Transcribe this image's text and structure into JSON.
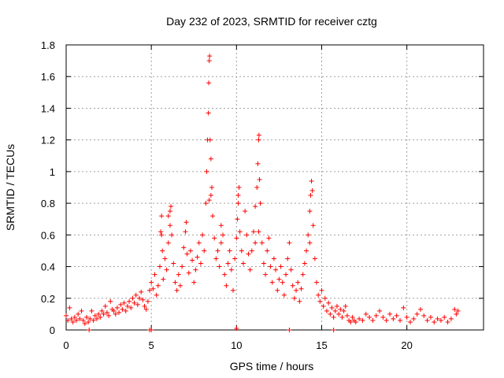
{
  "chart_data": {
    "type": "scatter",
    "title": "Day 232 of 2023, SRMTID for receiver cztg",
    "xlabel": "GPS time / hours",
    "ylabel": "SRMTID / TECUs",
    "xlim": [
      0,
      24.5
    ],
    "ylim": [
      0,
      1.8
    ],
    "xticks": [
      0,
      5,
      10,
      15,
      20
    ],
    "yticks": [
      0,
      0.2,
      0.4,
      0.6,
      0.8,
      1.0,
      1.2,
      1.4,
      1.6,
      1.8
    ],
    "xtick_labels": [
      "0",
      "5",
      "10",
      "15",
      "20"
    ],
    "ytick_labels": [
      "0",
      "0.2",
      "0.4",
      "0.6",
      "0.8",
      "1",
      "1.2",
      "1.4",
      "1.6",
      "1.8"
    ],
    "grid": true,
    "marker": "+",
    "color": "#ff0000",
    "series": [
      {
        "name": "SRMTID",
        "points": [
          [
            0.0,
            0.09
          ],
          [
            0.1,
            0.06
          ],
          [
            0.2,
            0.14
          ],
          [
            0.3,
            0.07
          ],
          [
            0.4,
            0.05
          ],
          [
            0.5,
            0.08
          ],
          [
            0.6,
            0.06
          ],
          [
            0.7,
            0.1
          ],
          [
            0.8,
            0.07
          ],
          [
            0.9,
            0.12
          ],
          [
            1.0,
            0.06
          ],
          [
            1.1,
            0.04
          ],
          [
            1.2,
            0.08
          ],
          [
            1.3,
            0.05
          ],
          [
            1.4,
            0.07
          ],
          [
            1.5,
            0.12
          ],
          [
            1.6,
            0.06
          ],
          [
            1.7,
            0.09
          ],
          [
            1.8,
            0.07
          ],
          [
            1.9,
            0.1
          ],
          [
            2.0,
            0.08
          ],
          [
            2.1,
            0.12
          ],
          [
            2.2,
            0.1
          ],
          [
            2.3,
            0.15
          ],
          [
            2.4,
            0.11
          ],
          [
            2.5,
            0.09
          ],
          [
            2.6,
            0.18
          ],
          [
            2.7,
            0.13
          ],
          [
            2.8,
            0.12
          ],
          [
            2.9,
            0.1
          ],
          [
            3.0,
            0.14
          ],
          [
            3.1,
            0.11
          ],
          [
            3.2,
            0.16
          ],
          [
            3.3,
            0.13
          ],
          [
            3.4,
            0.17
          ],
          [
            3.5,
            0.12
          ],
          [
            3.6,
            0.15
          ],
          [
            3.7,
            0.18
          ],
          [
            3.8,
            0.14
          ],
          [
            3.9,
            0.2
          ],
          [
            4.0,
            0.17
          ],
          [
            4.1,
            0.22
          ],
          [
            4.2,
            0.16
          ],
          [
            4.3,
            0.2
          ],
          [
            4.4,
            0.24
          ],
          [
            4.5,
            0.19
          ],
          [
            4.6,
            0.15
          ],
          [
            4.7,
            0.13
          ],
          [
            4.8,
            0.18
          ],
          [
            4.9,
            0.25
          ],
          [
            5.0,
            0.3
          ],
          [
            5.1,
            0.26
          ],
          [
            5.2,
            0.35
          ],
          [
            5.3,
            0.22
          ],
          [
            5.4,
            0.28
          ],
          [
            5.5,
            0.4
          ],
          [
            5.55,
            0.62
          ],
          [
            5.6,
            0.72
          ],
          [
            5.65,
            0.5
          ],
          [
            5.7,
            0.32
          ],
          [
            5.8,
            0.45
          ],
          [
            5.9,
            0.38
          ],
          [
            6.0,
            0.55
          ],
          [
            6.1,
            0.66
          ],
          [
            6.15,
            0.78
          ],
          [
            6.2,
            0.6
          ],
          [
            6.3,
            0.42
          ],
          [
            6.4,
            0.3
          ],
          [
            6.5,
            0.25
          ],
          [
            6.6,
            0.35
          ],
          [
            6.7,
            0.28
          ],
          [
            6.8,
            0.4
          ],
          [
            6.9,
            0.52
          ],
          [
            7.0,
            0.62
          ],
          [
            7.05,
            0.68
          ],
          [
            7.1,
            0.48
          ],
          [
            7.2,
            0.36
          ],
          [
            7.3,
            0.5
          ],
          [
            7.4,
            0.44
          ],
          [
            7.5,
            0.3
          ],
          [
            7.6,
            0.38
          ],
          [
            7.7,
            0.46
          ],
          [
            7.8,
            0.55
          ],
          [
            7.9,
            0.42
          ],
          [
            8.0,
            0.6
          ],
          [
            8.1,
            0.5
          ],
          [
            8.2,
            0.8
          ],
          [
            8.25,
            1.0
          ],
          [
            8.3,
            1.2
          ],
          [
            8.35,
            1.37
          ],
          [
            8.37,
            1.56
          ],
          [
            8.4,
            1.7
          ],
          [
            8.42,
            1.73
          ],
          [
            8.45,
            1.2
          ],
          [
            8.5,
            1.08
          ],
          [
            8.55,
            0.9
          ],
          [
            8.6,
            0.72
          ],
          [
            8.7,
            0.58
          ],
          [
            8.8,
            0.45
          ],
          [
            8.9,
            0.5
          ],
          [
            9.0,
            0.4
          ],
          [
            9.1,
            0.55
          ],
          [
            9.2,
            0.6
          ],
          [
            9.3,
            0.35
          ],
          [
            9.4,
            0.28
          ],
          [
            9.5,
            0.42
          ],
          [
            9.6,
            0.5
          ],
          [
            9.7,
            0.38
          ],
          [
            9.8,
            0.25
          ],
          [
            9.9,
            0.45
          ],
          [
            10.0,
            0.58
          ],
          [
            10.05,
            0.7
          ],
          [
            10.1,
            0.85
          ],
          [
            10.15,
            0.9
          ],
          [
            10.2,
            0.62
          ],
          [
            10.3,
            0.5
          ],
          [
            10.4,
            0.42
          ],
          [
            10.5,
            0.75
          ],
          [
            10.6,
            0.6
          ],
          [
            10.7,
            0.48
          ],
          [
            10.8,
            0.38
          ],
          [
            10.9,
            0.5
          ],
          [
            11.0,
            0.62
          ],
          [
            11.1,
            0.78
          ],
          [
            11.2,
            0.9
          ],
          [
            11.25,
            1.05
          ],
          [
            11.3,
            1.2
          ],
          [
            11.32,
            1.23
          ],
          [
            11.35,
            0.95
          ],
          [
            11.4,
            0.8
          ],
          [
            11.5,
            0.55
          ],
          [
            11.6,
            0.42
          ],
          [
            11.7,
            0.35
          ],
          [
            11.8,
            0.5
          ],
          [
            11.9,
            0.58
          ],
          [
            12.0,
            0.4
          ],
          [
            12.1,
            0.3
          ],
          [
            12.2,
            0.45
          ],
          [
            12.3,
            0.38
          ],
          [
            12.4,
            0.25
          ],
          [
            12.5,
            0.32
          ],
          [
            12.6,
            0.4
          ],
          [
            12.7,
            0.3
          ],
          [
            12.8,
            0.22
          ],
          [
            12.9,
            0.35
          ],
          [
            13.0,
            0.45
          ],
          [
            13.1,
            0.55
          ],
          [
            13.2,
            0.38
          ],
          [
            13.3,
            0.28
          ],
          [
            13.4,
            0.2
          ],
          [
            13.5,
            0.25
          ],
          [
            13.6,
            0.3
          ],
          [
            13.7,
            0.18
          ],
          [
            13.8,
            0.26
          ],
          [
            13.9,
            0.35
          ],
          [
            14.0,
            0.42
          ],
          [
            14.1,
            0.5
          ],
          [
            14.2,
            0.6
          ],
          [
            14.3,
            0.75
          ],
          [
            14.35,
            0.85
          ],
          [
            14.4,
            0.94
          ],
          [
            14.45,
            0.88
          ],
          [
            14.5,
            0.66
          ],
          [
            14.6,
            0.45
          ],
          [
            14.7,
            0.3
          ],
          [
            14.8,
            0.22
          ],
          [
            14.9,
            0.18
          ],
          [
            15.0,
            0.25
          ],
          [
            15.1,
            0.15
          ],
          [
            15.2,
            0.2
          ],
          [
            15.3,
            0.12
          ],
          [
            15.4,
            0.17
          ],
          [
            15.5,
            0.1
          ],
          [
            15.6,
            0.14
          ],
          [
            15.7,
            0.08
          ],
          [
            15.8,
            0.12
          ],
          [
            15.9,
            0.15
          ],
          [
            16.0,
            0.1
          ],
          [
            16.1,
            0.13
          ],
          [
            16.2,
            0.08
          ],
          [
            16.3,
            0.12
          ],
          [
            16.4,
            0.15
          ],
          [
            16.5,
            0.09
          ],
          [
            16.6,
            0.06
          ],
          [
            16.7,
            0.05
          ],
          [
            16.8,
            0.08
          ],
          [
            16.9,
            0.06
          ],
          [
            17.0,
            0.05
          ],
          [
            17.2,
            0.07
          ],
          [
            17.4,
            0.06
          ],
          [
            17.6,
            0.1
          ],
          [
            17.8,
            0.08
          ],
          [
            18.0,
            0.06
          ],
          [
            18.2,
            0.09
          ],
          [
            18.4,
            0.12
          ],
          [
            18.6,
            0.08
          ],
          [
            18.8,
            0.06
          ],
          [
            19.0,
            0.1
          ],
          [
            19.2,
            0.07
          ],
          [
            19.4,
            0.09
          ],
          [
            19.6,
            0.06
          ],
          [
            19.8,
            0.14
          ],
          [
            20.0,
            0.08
          ],
          [
            20.2,
            0.05
          ],
          [
            20.4,
            0.07
          ],
          [
            20.6,
            0.1
          ],
          [
            20.8,
            0.13
          ],
          [
            21.0,
            0.09
          ],
          [
            21.2,
            0.06
          ],
          [
            21.4,
            0.08
          ],
          [
            21.6,
            0.05
          ],
          [
            21.8,
            0.07
          ],
          [
            22.0,
            0.06
          ],
          [
            22.2,
            0.08
          ],
          [
            22.4,
            0.05
          ],
          [
            22.6,
            0.07
          ],
          [
            22.8,
            0.13
          ],
          [
            22.9,
            0.1
          ],
          [
            23.0,
            0.12
          ],
          [
            5.6,
            0.6
          ],
          [
            6.0,
            0.72
          ],
          [
            6.1,
            0.75
          ],
          [
            8.4,
            0.82
          ],
          [
            8.5,
            0.85
          ],
          [
            9.1,
            0.66
          ],
          [
            10.1,
            0.8
          ],
          [
            11.1,
            0.55
          ],
          [
            11.3,
            0.62
          ],
          [
            14.3,
            0.55
          ],
          [
            1.35,
            0.0
          ],
          [
            4.9,
            0.0
          ],
          [
            5.0,
            0.0
          ],
          [
            10.0,
            0.01
          ],
          [
            13.1,
            0.0
          ],
          [
            15.7,
            0.0
          ]
        ]
      }
    ]
  }
}
